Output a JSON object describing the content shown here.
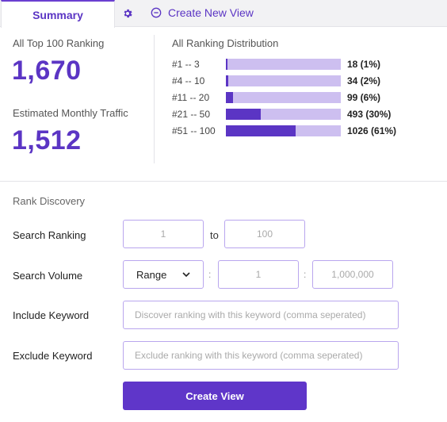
{
  "tabs": {
    "summary_label": "Summary",
    "create_new_view_label": "Create New View"
  },
  "stats": {
    "top100_label": "All Top 100 Ranking",
    "top100_value": "1,670",
    "traffic_label": "Estimated Monthly Traffic",
    "traffic_value": "1,512"
  },
  "distribution": {
    "title": "All Ranking Distribution",
    "rows": [
      {
        "range": "#1 -- 3",
        "value": "18 (1%)",
        "fraction": 0.01
      },
      {
        "range": "#4 -- 10",
        "value": "34 (2%)",
        "fraction": 0.02
      },
      {
        "range": "#11 -- 20",
        "value": "99 (6%)",
        "fraction": 0.06
      },
      {
        "range": "#21 -- 50",
        "value": "493 (30%)",
        "fraction": 0.3
      },
      {
        "range": "#51 -- 100",
        "value": "1026 (61%)",
        "fraction": 0.61
      }
    ]
  },
  "discovery": {
    "title": "Rank Discovery",
    "search_ranking_label": "Search Ranking",
    "ranking_from": "1",
    "ranking_to_word": "to",
    "ranking_to": "100",
    "search_volume_label": "Search Volume",
    "volume_mode": "Range",
    "volume_sep1": ":",
    "volume_min": "1",
    "volume_sep2": ":",
    "volume_max": "1,000,000",
    "include_label": "Include Keyword",
    "include_placeholder": "Discover ranking with this keyword (comma seperated)",
    "exclude_label": "Exclude Keyword",
    "exclude_placeholder": "Exclude ranking with this keyword (comma seperated)",
    "create_button": "Create View"
  },
  "colors": {
    "accent": "#5b35c4",
    "bar_track": "#cdbff0",
    "border": "#b9a6ee"
  }
}
